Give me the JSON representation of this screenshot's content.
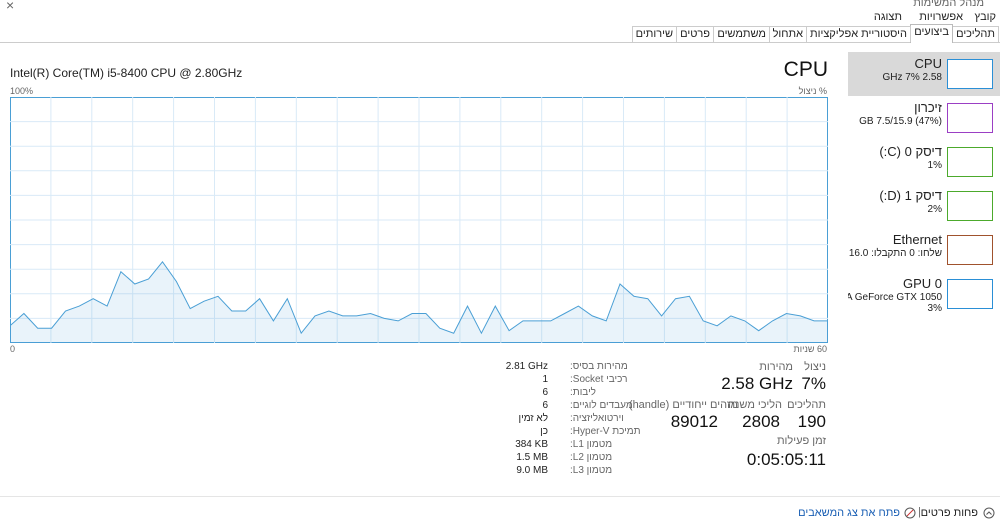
{
  "window_title": "מנהל המשימות",
  "menu": [
    "קובץ",
    "אפשרויות",
    "תצוגה"
  ],
  "tabs": [
    "תהליכים",
    "ביצועים",
    "היסטוריית אפליקציות",
    "אתחול",
    "משתמשים",
    "פרטים",
    "שירותים"
  ],
  "sidebar": [
    {
      "name": "CPU",
      "detail": "2.58 GHz 7%"
    },
    {
      "name": "זיכרון",
      "detail": "(47%) 7.5/15.9 GB"
    },
    {
      "name": "דיסק 0 (C:)",
      "detail": "1%"
    },
    {
      "name": "דיסק 1 (D:)",
      "detail": "2%"
    },
    {
      "name": "Ethernet",
      "detail": "שלחו: 0 התקבלו: 16.0 s"
    },
    {
      "name": "GPU 0",
      "detail": "NVIDIA GeForce GTX 1050",
      "detail2": "3%"
    }
  ],
  "main": {
    "title": "CPU",
    "cpu_model": "Intel(R) Core(TM) i5-8400 CPU @ 2.80GHz",
    "graph_top_left": "100%",
    "graph_top_right": "% ניצול",
    "graph_bottom_left": "0",
    "graph_bottom_right": "60 שניות"
  },
  "chart_data": {
    "type": "line",
    "color": "#4a9fd5",
    "ylim": [
      0,
      100
    ],
    "values": [
      7,
      12,
      6,
      6,
      13,
      15,
      18,
      15,
      29,
      24,
      26,
      33,
      25,
      14,
      17,
      19,
      13,
      13,
      18,
      9,
      18,
      4,
      11,
      13,
      11,
      11,
      12,
      10,
      9,
      12,
      12,
      6,
      4,
      15,
      4,
      15,
      5,
      9,
      9,
      9,
      12,
      15,
      11,
      9,
      24,
      19,
      18,
      11,
      18,
      19,
      9,
      7,
      11,
      9,
      5,
      9,
      12,
      11,
      9,
      9
    ]
  },
  "stats": {
    "utilization_label": "ניצול",
    "utilization": "7%",
    "speed_label": "מהירות",
    "speed": "2.58 GHz",
    "processes_label": "תהליכים",
    "processes": "190",
    "threads_label": "הליכי משנה",
    "threads": "2808",
    "handles_label": "מזהים ייחודיים (handle)",
    "handles": "89012",
    "uptime_label": "זמן פעילות",
    "uptime": "0:05:05:11"
  },
  "details": [
    {
      "label": "מהירות בסיס:",
      "value": "2.81 GHz"
    },
    {
      "label": "רכיבי Socket:",
      "value": "1"
    },
    {
      "label": "ליבות:",
      "value": "6"
    },
    {
      "label": "מעבדים לוגיים:",
      "value": "6"
    },
    {
      "label": "וירטואליזציה:",
      "value": "לא זמין"
    },
    {
      "label": "תמיכת Hyper-V:",
      "value": "כן"
    },
    {
      "label": "מטמון L1:",
      "value": "384 KB"
    },
    {
      "label": "מטמון L2:",
      "value": "1.5 MB"
    },
    {
      "label": "מטמון L3:",
      "value": "9.0 MB"
    }
  ],
  "footer": {
    "fewer": "פחות פרטים",
    "monitor": "פתח את צג המשאבים"
  }
}
